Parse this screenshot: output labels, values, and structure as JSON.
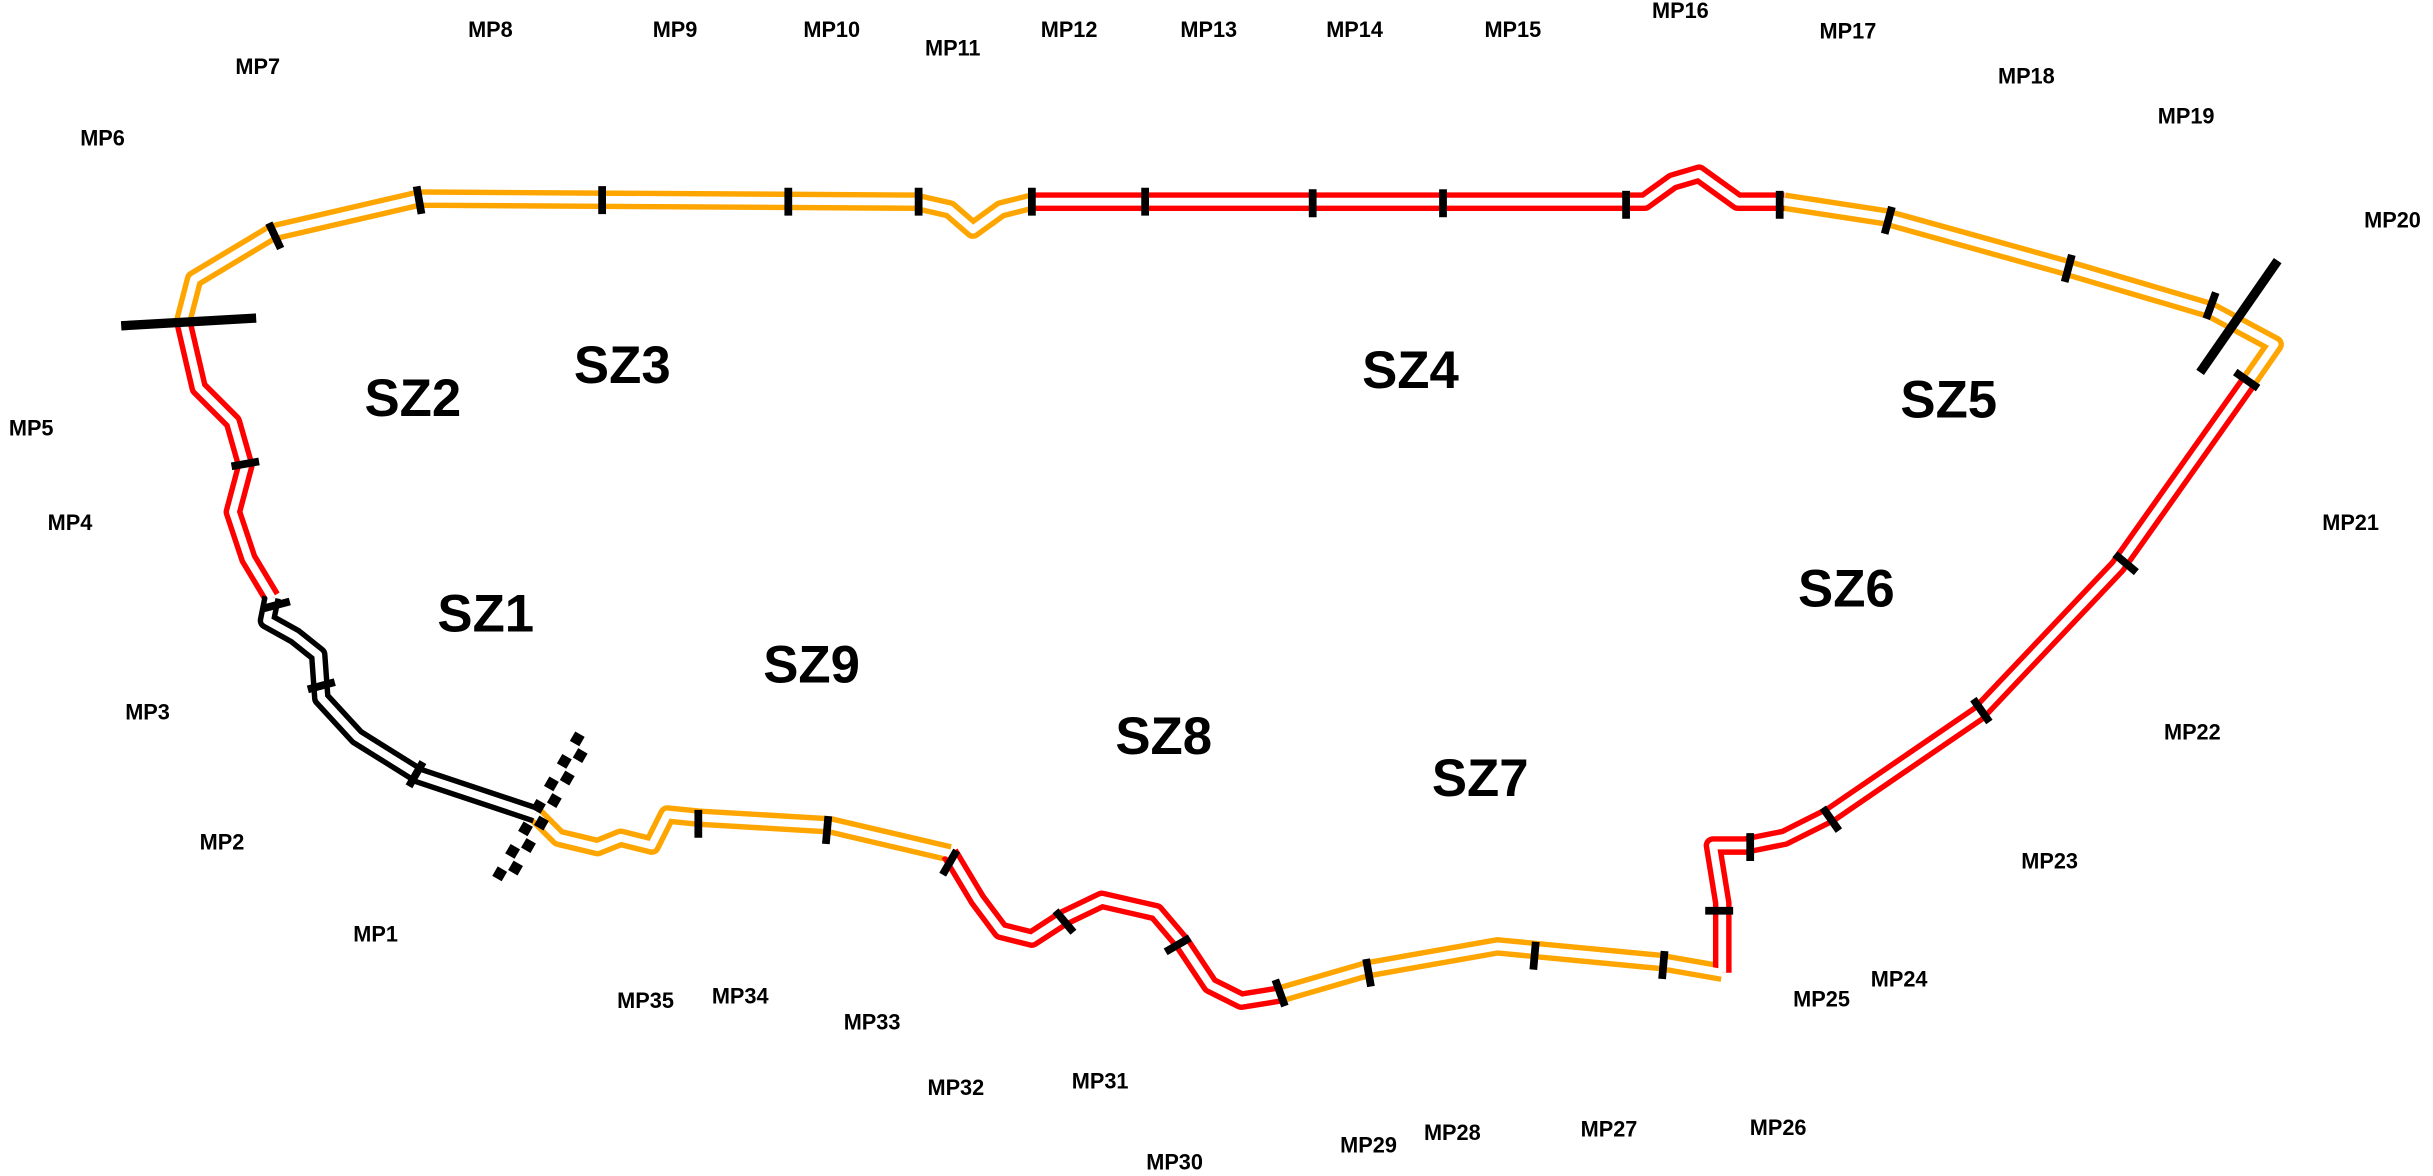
{
  "markers": [
    "MP1",
    "MP2",
    "MP3",
    "MP4",
    "MP5",
    "MP6",
    "MP7",
    "MP8",
    "MP9",
    "MP10",
    "MP11",
    "MP12",
    "MP13",
    "MP14",
    "MP15",
    "MP16",
    "MP17",
    "MP18",
    "MP19",
    "MP20",
    "MP21",
    "MP22",
    "MP23",
    "MP24",
    "MP25",
    "MP26",
    "MP27",
    "MP28",
    "MP29",
    "MP30",
    "MP31",
    "MP32",
    "MP33",
    "MP34",
    "MP35"
  ],
  "zones": [
    "SZ1",
    "SZ2",
    "SZ3",
    "SZ4",
    "SZ5",
    "SZ6",
    "SZ7",
    "SZ8",
    "SZ9"
  ]
}
